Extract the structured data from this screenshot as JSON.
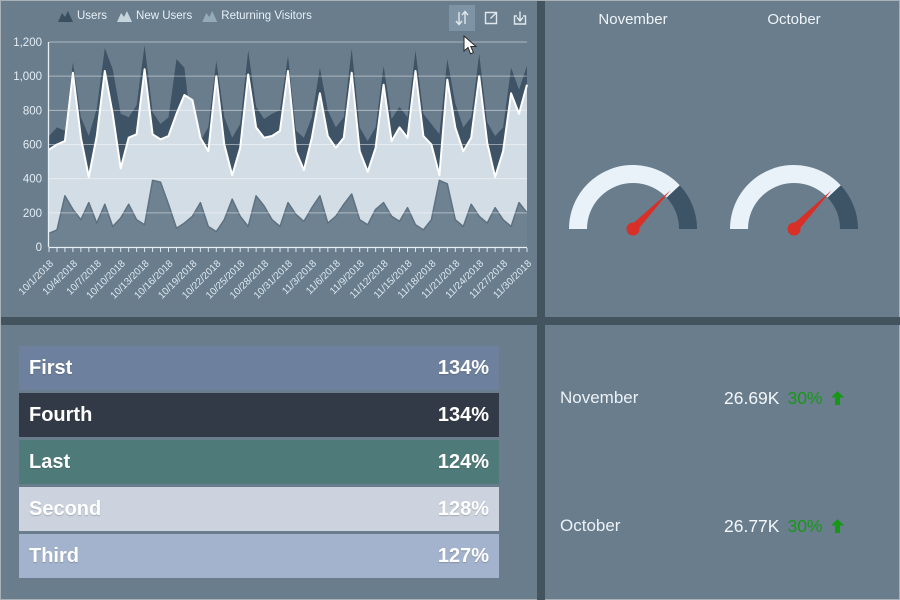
{
  "colors": {
    "background": "#697d8d",
    "divider": "#44545f",
    "axis_text": "#e4edf4",
    "positive_green": "#169816",
    "needle_red": "#d82f27"
  },
  "icons": {
    "toolbar": [
      "swap-vertical-icon",
      "maximize-icon",
      "download-icon"
    ],
    "kpi_trend": "up-arrow-icon",
    "pointer": "mouse-cursor"
  },
  "chart_data": [
    {
      "id": "visitors-area",
      "type": "area",
      "title": "",
      "legend": [
        "Users",
        "New Users",
        "Returning Visitors"
      ],
      "legend_position": "top",
      "legend_icon_colors": [
        "#3a5060",
        "#c6d4de",
        "#94aab7"
      ],
      "grid": true,
      "ylim": [
        0,
        1200
      ],
      "y_ticks": [
        "0",
        "200",
        "400",
        "600",
        "800",
        "1,000",
        "1,200"
      ],
      "y_tick_values": [
        0,
        200,
        400,
        600,
        800,
        1000,
        1200
      ],
      "x_start": "10/1/2018",
      "x_end": "11/30/2018",
      "x_points": 61,
      "x_label_every": 3,
      "x_tick_labels": [
        "10/1/2018",
        "10/4/2018",
        "10/7/2018",
        "10/10/2018",
        "10/13/2018",
        "10/16/2018",
        "10/19/2018",
        "10/22/2018",
        "10/25/2018",
        "10/28/2018",
        "10/31/2018",
        "11/3/2018",
        "11/6/2018",
        "11/9/2018",
        "11/12/2018",
        "11/15/2018",
        "11/18/2018",
        "11/21/2018",
        "11/24/2018",
        "11/27/2018",
        "11/30/2018"
      ],
      "series": [
        {
          "name": "Users",
          "color": "#3e5366",
          "values": [
            650,
            700,
            680,
            1080,
            760,
            650,
            810,
            1165,
            1040,
            780,
            760,
            830,
            1180,
            790,
            720,
            760,
            1100,
            1050,
            650,
            620,
            700,
            1090,
            760,
            640,
            720,
            1150,
            820,
            750,
            780,
            800,
            1120,
            680,
            640,
            760,
            1050,
            800,
            700,
            760,
            1160,
            700,
            620,
            700,
            1060,
            750,
            820,
            760,
            1150,
            780,
            720,
            660,
            1100,
            840,
            700,
            760,
            1130,
            730,
            650,
            700,
            1050,
            920,
            1060
          ]
        },
        {
          "name": "New Users",
          "color": "#d3dde5",
          "stroke": "#ffffff",
          "stroke_width": 2,
          "values": [
            570,
            600,
            620,
            1020,
            640,
            410,
            650,
            1030,
            780,
            460,
            640,
            660,
            1040,
            660,
            630,
            650,
            780,
            890,
            860,
            640,
            560,
            1000,
            600,
            420,
            580,
            1010,
            700,
            640,
            650,
            680,
            1030,
            560,
            450,
            640,
            900,
            650,
            580,
            640,
            1020,
            560,
            440,
            580,
            950,
            620,
            700,
            640,
            1030,
            650,
            600,
            420,
            980,
            700,
            560,
            640,
            1000,
            610,
            410,
            560,
            900,
            780,
            950
          ]
        },
        {
          "name": "Returning Visitors",
          "color": "#6e8292",
          "stroke": "#5d7181",
          "stroke_width": 1.5,
          "values": [
            80,
            100,
            300,
            220,
            160,
            260,
            140,
            250,
            120,
            170,
            250,
            160,
            130,
            390,
            380,
            250,
            110,
            140,
            180,
            260,
            120,
            90,
            160,
            280,
            180,
            120,
            300,
            240,
            160,
            120,
            260,
            190,
            150,
            230,
            300,
            140,
            180,
            250,
            310,
            160,
            130,
            220,
            260,
            180,
            150,
            230,
            130,
            100,
            160,
            390,
            370,
            160,
            120,
            250,
            180,
            140,
            230,
            160,
            120,
            260,
            200
          ]
        }
      ]
    },
    {
      "id": "gauge-november",
      "type": "gauge",
      "title": "November",
      "start_angle": 180,
      "end_angle": 0,
      "segments": [
        {
          "from": 180,
          "to": 43,
          "color": "#e9f2f9"
        },
        {
          "from": 43,
          "to": 0,
          "color": "#3d5466"
        }
      ],
      "needle_deg": 46,
      "needle_color": "#d82f27"
    },
    {
      "id": "gauge-october",
      "type": "gauge",
      "title": "October",
      "start_angle": 180,
      "end_angle": 0,
      "segments": [
        {
          "from": 180,
          "to": 43,
          "color": "#e9f2f9"
        },
        {
          "from": 43,
          "to": 0,
          "color": "#3d5466"
        }
      ],
      "needle_deg": 46,
      "needle_color": "#d82f27"
    },
    {
      "id": "category-bars",
      "type": "bar",
      "bar_style": "full-width",
      "categories": [
        "First",
        "Fourth",
        "Last",
        "Second",
        "Third"
      ],
      "values": [
        134,
        134,
        124,
        128,
        127
      ],
      "value_labels": [
        "134%",
        "134%",
        "124%",
        "128%",
        "127%"
      ],
      "bar_colors": [
        "#6d809e",
        "#333a47",
        "#4e7b79",
        "#ccd3de",
        "#a3b3cd"
      ]
    },
    {
      "id": "kpi-list",
      "type": "table",
      "rows": [
        {
          "label": "November",
          "value": "26.69K",
          "delta": "30%",
          "trend": "up"
        },
        {
          "label": "October",
          "value": "26.77K",
          "delta": "30%",
          "trend": "up"
        }
      ],
      "delta_color": "#169816"
    }
  ]
}
